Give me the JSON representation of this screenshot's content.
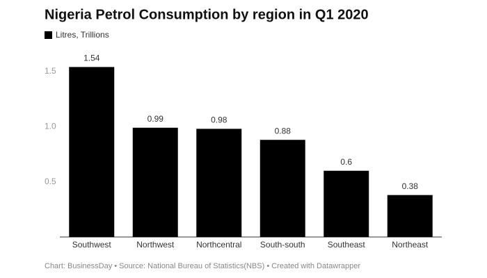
{
  "chart_data": {
    "type": "bar",
    "title": "Nigeria Petrol Consumption by region in Q1 2020",
    "series": [
      {
        "name": "Litres, Trillions",
        "color": "#000000",
        "values": [
          1.54,
          0.99,
          0.98,
          0.88,
          0.6,
          0.38
        ]
      }
    ],
    "categories": [
      "Southwest",
      "Northwest",
      "Northcentral",
      "South-south",
      "Southeast",
      "Northeast"
    ],
    "ylim": [
      0,
      1.7
    ],
    "yticks": [
      0.5,
      {
        "value": 1,
        "label": "1.0"
      },
      1.5
    ],
    "grid": false,
    "footer": "Chart: BusinessDay • Source: National Bureau of Statistics(NBS) • Created with Datawrapper"
  }
}
